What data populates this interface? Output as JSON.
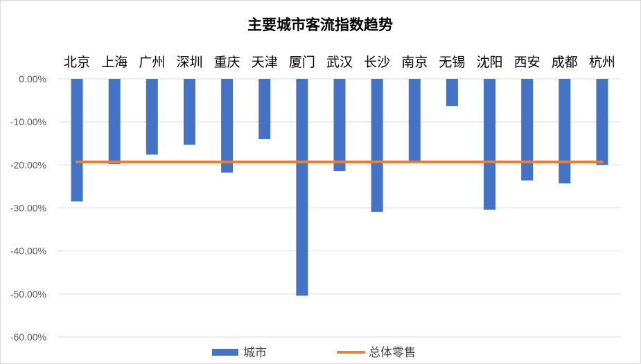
{
  "chart_data": {
    "type": "bar",
    "title": "主要城市客流指数趋势",
    "categories": [
      "北京",
      "上海",
      "广州",
      "深圳",
      "重庆",
      "天津",
      "厦门",
      "武汉",
      "长沙",
      "南京",
      "无锡",
      "沈阳",
      "西安",
      "成都",
      "杭州"
    ],
    "series": [
      {
        "name": "城市",
        "type": "bar",
        "color": "#4472c4",
        "values": [
          -28.5,
          -19.8,
          -17.6,
          -15.3,
          -21.8,
          -14.0,
          -50.4,
          -21.4,
          -30.9,
          -19.0,
          -6.3,
          -30.4,
          -23.6,
          -24.3,
          -20.0
        ]
      },
      {
        "name": "总体零售",
        "type": "line",
        "color": "#ed7d31",
        "values": [
          -19.3,
          -19.3,
          -19.3,
          -19.3,
          -19.3,
          -19.3,
          -19.3,
          -19.3,
          -19.3,
          -19.3,
          -19.3,
          -19.3,
          -19.3,
          -19.3,
          -19.3
        ]
      }
    ],
    "ylim": [
      -60,
      0
    ],
    "yticks": [
      "0.00%",
      "-10.00%",
      "-20.00%",
      "-30.00%",
      "-40.00%",
      "-50.00%",
      "-60.00%"
    ],
    "xlabel": "",
    "ylabel": "",
    "grid": true,
    "legend_position": "bottom",
    "gridline_color": "#d9d9d9"
  }
}
